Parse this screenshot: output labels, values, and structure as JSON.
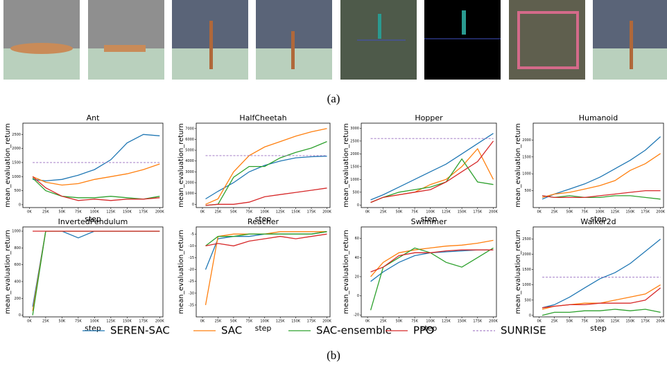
{
  "caption_a": "(a)",
  "caption_b": "(b)",
  "chart_data": [
    {
      "type": "line",
      "title": "Ant",
      "x_label": "step",
      "y_label": "mean_evaluation_return",
      "x": [
        5000,
        25000,
        50000,
        75000,
        100000,
        125000,
        150000,
        175000,
        200000
      ],
      "xlim": [
        -10000,
        205000
      ],
      "xticks": [
        {
          "value": 0,
          "label": "0K"
        },
        {
          "value": 25000,
          "label": "25K"
        },
        {
          "value": 50000,
          "label": "50K"
        },
        {
          "value": 75000,
          "label": "75K"
        },
        {
          "value": 100000,
          "label": "100K"
        },
        {
          "value": 125000,
          "label": "125K"
        },
        {
          "value": 150000,
          "label": "150K"
        },
        {
          "value": 175000,
          "label": "175K"
        },
        {
          "value": 200000,
          "label": "200K"
        }
      ],
      "ylim": [
        -100,
        2900
      ],
      "yticks": [
        0,
        500,
        1000,
        1500,
        2000,
        2500
      ],
      "series": [
        {
          "name": "SEREN-SAC",
          "color": "#1f77b4",
          "values": [
            900,
            850,
            900,
            1050,
            1250,
            1600,
            2200,
            2500,
            2450
          ]
        },
        {
          "name": "SAC",
          "color": "#ff7f0e",
          "values": [
            1000,
            800,
            700,
            750,
            900,
            1000,
            1100,
            1250,
            1450
          ]
        },
        {
          "name": "SAC-ensemble",
          "color": "#2ca02c",
          "values": [
            950,
            500,
            300,
            250,
            250,
            300,
            250,
            200,
            300
          ]
        },
        {
          "name": "PPO",
          "color": "#d62728",
          "values": [
            1000,
            600,
            300,
            150,
            200,
            150,
            200,
            200,
            250
          ]
        },
        {
          "name": "SUNRISE",
          "color": "#9467bd",
          "dashed": true,
          "values": [
            1500,
            1500,
            1500,
            1500,
            1500,
            1500,
            1500,
            1500,
            1500
          ]
        }
      ]
    },
    {
      "type": "line",
      "title": "HalfCheetah",
      "x_label": "step",
      "y_label": "mean_evaluation_return",
      "x": [
        5000,
        25000,
        50000,
        75000,
        100000,
        125000,
        150000,
        175000,
        200000
      ],
      "xlim": [
        -10000,
        205000
      ],
      "xticks": [
        {
          "value": 0,
          "label": "0K"
        },
        {
          "value": 25000,
          "label": "25K"
        },
        {
          "value": 50000,
          "label": "50K"
        },
        {
          "value": 75000,
          "label": "75K"
        },
        {
          "value": 100000,
          "label": "100K"
        },
        {
          "value": 125000,
          "label": "125K"
        },
        {
          "value": 150000,
          "label": "150K"
        },
        {
          "value": 175000,
          "label": "175K"
        },
        {
          "value": 200000,
          "label": "200K"
        }
      ],
      "ylim": [
        -300,
        7500
      ],
      "yticks": [
        0,
        1000,
        2000,
        3000,
        4000,
        5000,
        6000,
        7000
      ],
      "series": [
        {
          "name": "SEREN-SAC",
          "color": "#1f77b4",
          "values": [
            500,
            1200,
            2000,
            3000,
            3600,
            4000,
            4300,
            4400,
            4450
          ]
        },
        {
          "name": "SAC",
          "color": "#ff7f0e",
          "values": [
            0,
            500,
            3000,
            4500,
            5300,
            5800,
            6300,
            6700,
            7000
          ]
        },
        {
          "name": "SAC-ensemble",
          "color": "#2ca02c",
          "values": [
            -100,
            0,
            2500,
            3500,
            3500,
            4300,
            4800,
            5200,
            5800
          ]
        },
        {
          "name": "PPO",
          "color": "#d62728",
          "values": [
            -100,
            0,
            0,
            200,
            700,
            900,
            1100,
            1300,
            1500
          ]
        },
        {
          "name": "SUNRISE",
          "color": "#9467bd",
          "dashed": true,
          "values": [
            4500,
            4500,
            4500,
            4500,
            4500,
            4500,
            4500,
            4500,
            4500
          ]
        }
      ]
    },
    {
      "type": "line",
      "title": "Hopper",
      "x_label": "step",
      "y_label": "mean_evaluation_return",
      "x": [
        5000,
        25000,
        50000,
        75000,
        100000,
        125000,
        150000,
        175000,
        200000
      ],
      "xlim": [
        -10000,
        205000
      ],
      "xticks": [
        {
          "value": 0,
          "label": "0K"
        },
        {
          "value": 25000,
          "label": "25K"
        },
        {
          "value": 50000,
          "label": "50K"
        },
        {
          "value": 75000,
          "label": "75K"
        },
        {
          "value": 100000,
          "label": "100K"
        },
        {
          "value": 125000,
          "label": "125K"
        },
        {
          "value": 150000,
          "label": "150K"
        },
        {
          "value": 175000,
          "label": "175K"
        },
        {
          "value": 200000,
          "label": "200K"
        }
      ],
      "ylim": [
        -100,
        3200
      ],
      "yticks": [
        0,
        500,
        1000,
        1500,
        2000,
        2500,
        3000
      ],
      "series": [
        {
          "name": "SEREN-SAC",
          "color": "#1f77b4",
          "values": [
            200,
            400,
            700,
            1000,
            1300,
            1600,
            2000,
            2400,
            2800
          ]
        },
        {
          "name": "SAC",
          "color": "#ff7f0e",
          "values": [
            100,
            300,
            400,
            500,
            800,
            1000,
            1500,
            2200,
            1000
          ]
        },
        {
          "name": "SAC-ensemble",
          "color": "#2ca02c",
          "values": [
            100,
            300,
            500,
            600,
            700,
            900,
            1800,
            900,
            800
          ]
        },
        {
          "name": "PPO",
          "color": "#d62728",
          "values": [
            100,
            300,
            400,
            500,
            600,
            900,
            1300,
            1700,
            2500
          ]
        },
        {
          "name": "SUNRISE",
          "color": "#9467bd",
          "dashed": true,
          "values": [
            2600,
            2600,
            2600,
            2600,
            2600,
            2600,
            2600,
            2600,
            2600
          ]
        }
      ]
    },
    {
      "type": "line",
      "title": "Humanoid",
      "x_label": "step",
      "y_label": "mean_evaluation_return",
      "x": [
        5000,
        25000,
        50000,
        75000,
        100000,
        125000,
        150000,
        175000,
        200000
      ],
      "xlim": [
        -10000,
        205000
      ],
      "xticks": [
        {
          "value": 0,
          "label": "0K"
        },
        {
          "value": 25000,
          "label": "25K"
        },
        {
          "value": 50000,
          "label": "50K"
        },
        {
          "value": 75000,
          "label": "75K"
        },
        {
          "value": 100000,
          "label": "100K"
        },
        {
          "value": 125000,
          "label": "125K"
        },
        {
          "value": 150000,
          "label": "150K"
        },
        {
          "value": 175000,
          "label": "175K"
        },
        {
          "value": 200000,
          "label": "200K"
        }
      ],
      "ylim": [
        0,
        2500
      ],
      "yticks": [
        500,
        1000,
        1500,
        2000
      ],
      "series": [
        {
          "name": "SEREN-SAC",
          "color": "#1f77b4",
          "values": [
            250,
            400,
            550,
            700,
            900,
            1150,
            1400,
            1700,
            2100
          ]
        },
        {
          "name": "SAC",
          "color": "#ff7f0e",
          "values": [
            300,
            400,
            450,
            550,
            650,
            800,
            1100,
            1300,
            1600
          ]
        },
        {
          "name": "SAC-ensemble",
          "color": "#2ca02c",
          "values": [
            350,
            300,
            350,
            300,
            300,
            350,
            350,
            300,
            250
          ]
        },
        {
          "name": "PPO",
          "color": "#d62728",
          "values": [
            350,
            300,
            300,
            300,
            350,
            400,
            450,
            500,
            500
          ]
        }
      ]
    },
    {
      "type": "line",
      "title": "InvertedPendulum",
      "x_label": "step",
      "y_label": "mean_evaluation_return",
      "x": [
        5000,
        25000,
        50000,
        75000,
        100000,
        125000,
        150000,
        175000,
        200000
      ],
      "xlim": [
        -10000,
        205000
      ],
      "xticks": [
        {
          "value": 0,
          "label": "0K"
        },
        {
          "value": 25000,
          "label": "25K"
        },
        {
          "value": 50000,
          "label": "50K"
        },
        {
          "value": 75000,
          "label": "75K"
        },
        {
          "value": 100000,
          "label": "100K"
        },
        {
          "value": 125000,
          "label": "125K"
        },
        {
          "value": 150000,
          "label": "150K"
        },
        {
          "value": 175000,
          "label": "175K"
        },
        {
          "value": 200000,
          "label": "200K"
        }
      ],
      "ylim": [
        -20,
        1050
      ],
      "yticks": [
        0,
        200,
        400,
        600,
        800,
        1000
      ],
      "series": [
        {
          "name": "SEREN-SAC",
          "color": "#1f77b4",
          "values": [
            100,
            1000,
            1000,
            920,
            1000,
            1000,
            1000,
            1000,
            1000
          ]
        },
        {
          "name": "SAC",
          "color": "#ff7f0e",
          "values": [
            50,
            1000,
            1000,
            1000,
            1000,
            1000,
            1000,
            1000,
            1000
          ]
        },
        {
          "name": "SAC-ensemble",
          "color": "#2ca02c",
          "values": [
            0,
            1000,
            1000,
            1000,
            1000,
            1000,
            1000,
            1000,
            1000
          ]
        },
        {
          "name": "PPO",
          "color": "#d62728",
          "values": [
            1000,
            1000,
            1000,
            1000,
            1000,
            1000,
            1000,
            1000,
            1000
          ]
        }
      ]
    },
    {
      "type": "line",
      "title": "Reacher",
      "x_label": "step",
      "y_label": "mean_evaluation_return",
      "x": [
        5000,
        25000,
        50000,
        75000,
        100000,
        125000,
        150000,
        175000,
        200000
      ],
      "xlim": [
        -10000,
        205000
      ],
      "xticks": [
        {
          "value": 0,
          "label": "0K"
        },
        {
          "value": 25000,
          "label": "25K"
        },
        {
          "value": 50000,
          "label": "50K"
        },
        {
          "value": 75000,
          "label": "75K"
        },
        {
          "value": 100000,
          "label": "100K"
        },
        {
          "value": 125000,
          "label": "125K"
        },
        {
          "value": 150000,
          "label": "150K"
        },
        {
          "value": 175000,
          "label": "175K"
        },
        {
          "value": 200000,
          "label": "200K"
        }
      ],
      "ylim": [
        -40,
        -2
      ],
      "yticks": [
        -35,
        -30,
        -25,
        -20,
        -15,
        -10,
        -5
      ],
      "series": [
        {
          "name": "SEREN-SAC",
          "color": "#1f77b4",
          "values": [
            -20,
            -7,
            -6,
            -6,
            -5,
            -5,
            -5,
            -5,
            -4
          ]
        },
        {
          "name": "SAC",
          "color": "#ff7f0e",
          "values": [
            -35,
            -6,
            -5,
            -5,
            -5,
            -4,
            -4,
            -4,
            -4
          ]
        },
        {
          "name": "SAC-ensemble",
          "color": "#2ca02c",
          "values": [
            -10,
            -6,
            -6,
            -5,
            -5,
            -5,
            -5,
            -5,
            -4
          ]
        },
        {
          "name": "PPO",
          "color": "#d62728",
          "values": [
            -10,
            -9,
            -10,
            -8,
            -7,
            -6,
            -7,
            -6,
            -5
          ]
        }
      ]
    },
    {
      "type": "line",
      "title": "Swimmer",
      "x_label": "step",
      "y_label": "mean_evaluation_return",
      "x": [
        5000,
        25000,
        50000,
        75000,
        100000,
        125000,
        150000,
        175000,
        200000
      ],
      "xlim": [
        -10000,
        205000
      ],
      "xticks": [
        {
          "value": 0,
          "label": "0K"
        },
        {
          "value": 25000,
          "label": "25K"
        },
        {
          "value": 50000,
          "label": "50K"
        },
        {
          "value": 75000,
          "label": "75K"
        },
        {
          "value": 100000,
          "label": "100K"
        },
        {
          "value": 125000,
          "label": "125K"
        },
        {
          "value": 150000,
          "label": "150K"
        },
        {
          "value": 175000,
          "label": "175K"
        },
        {
          "value": 200000,
          "label": "200K"
        }
      ],
      "ylim": [
        -22,
        72
      ],
      "yticks": [
        -20,
        0,
        20,
        40,
        60
      ],
      "series": [
        {
          "name": "SEREN-SAC",
          "color": "#1f77b4",
          "values": [
            15,
            25,
            35,
            42,
            45,
            46,
            47,
            48,
            48
          ]
        },
        {
          "name": "SAC",
          "color": "#ff7f0e",
          "values": [
            20,
            35,
            45,
            48,
            50,
            52,
            53,
            55,
            58
          ]
        },
        {
          "name": "SAC-ensemble",
          "color": "#2ca02c",
          "values": [
            -15,
            30,
            40,
            50,
            45,
            35,
            30,
            40,
            50
          ]
        },
        {
          "name": "PPO",
          "color": "#d62728",
          "values": [
            25,
            30,
            42,
            45,
            45,
            47,
            48,
            48,
            48
          ]
        }
      ]
    },
    {
      "type": "line",
      "title": "Walker2d",
      "x_label": "step",
      "y_label": "mean_evaluation_return",
      "x": [
        5000,
        25000,
        50000,
        75000,
        100000,
        125000,
        150000,
        175000,
        200000
      ],
      "xlim": [
        -10000,
        205000
      ],
      "xticks": [
        {
          "value": 0,
          "label": "0K"
        },
        {
          "value": 25000,
          "label": "25K"
        },
        {
          "value": 50000,
          "label": "50K"
        },
        {
          "value": 75000,
          "label": "75K"
        },
        {
          "value": 100000,
          "label": "100K"
        },
        {
          "value": 125000,
          "label": "125K"
        },
        {
          "value": 150000,
          "label": "150K"
        },
        {
          "value": 175000,
          "label": "175K"
        },
        {
          "value": 200000,
          "label": "200K"
        }
      ],
      "ylim": [
        -50,
        2900
      ],
      "yticks": [
        0,
        500,
        1000,
        1500,
        2000,
        2500
      ],
      "series": [
        {
          "name": "SEREN-SAC",
          "color": "#1f77b4",
          "values": [
            250,
            350,
            600,
            900,
            1200,
            1400,
            1700,
            2100,
            2500
          ]
        },
        {
          "name": "SAC",
          "color": "#ff7f0e",
          "values": [
            200,
            300,
            350,
            400,
            400,
            500,
            600,
            700,
            1000
          ]
        },
        {
          "name": "SAC-ensemble",
          "color": "#2ca02c",
          "values": [
            0,
            100,
            100,
            150,
            150,
            200,
            150,
            200,
            100
          ]
        },
        {
          "name": "PPO",
          "color": "#d62728",
          "values": [
            250,
            300,
            350,
            350,
            400,
            400,
            400,
            500,
            900
          ]
        },
        {
          "name": "SUNRISE",
          "color": "#9467bd",
          "dashed": true,
          "values": [
            1250,
            1250,
            1250,
            1250,
            1250,
            1250,
            1250,
            1250,
            1250
          ]
        }
      ]
    }
  ]
}
